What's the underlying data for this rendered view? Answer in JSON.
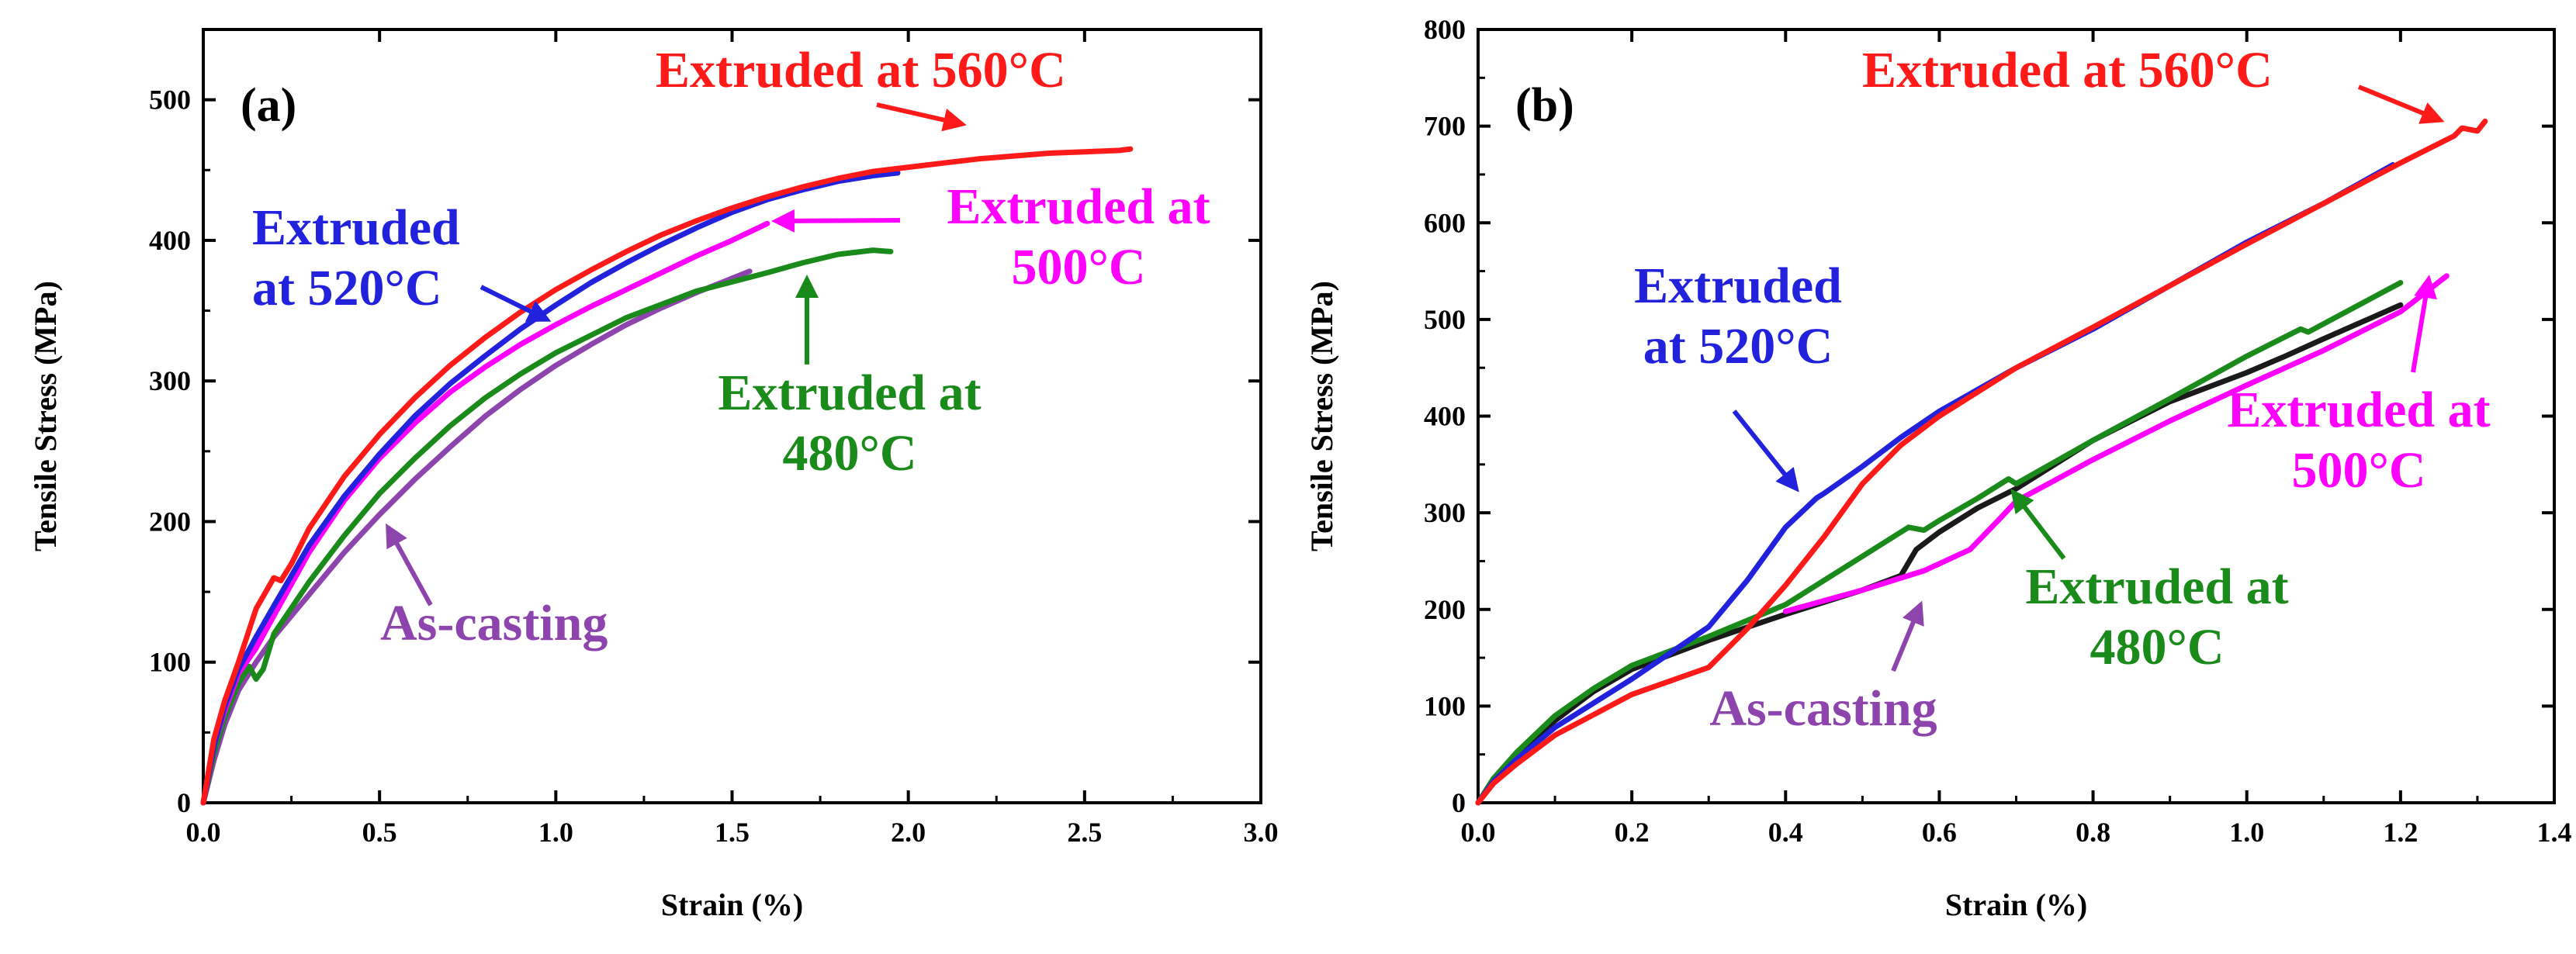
{
  "chart_data": [
    {
      "panel_label": "(a)",
      "type": "line",
      "xlabel": "Strain (%)",
      "ylabel": "Tensile Stress (MPa)",
      "xlim": [
        0,
        3.0
      ],
      "ylim": [
        0,
        550
      ],
      "xticks": [
        "0.0",
        "0.5",
        "1.0",
        "1.5",
        "2.0",
        "2.5",
        "3.0"
      ],
      "xtick_values": [
        0,
        0.5,
        1.0,
        1.5,
        2.0,
        2.5,
        3.0
      ],
      "yticks": [
        "0",
        "100",
        "200",
        "300",
        "400",
        "500"
      ],
      "ytick_values": [
        0,
        100,
        200,
        300,
        400,
        500
      ],
      "series": [
        {
          "name": "As-casting",
          "color": "#8e44ad",
          "x": [
            0,
            0.03,
            0.06,
            0.1,
            0.15,
            0.2,
            0.3,
            0.4,
            0.5,
            0.6,
            0.7,
            0.8,
            0.9,
            1.0,
            1.1,
            1.2,
            1.3,
            1.4,
            1.5,
            1.55
          ],
          "y": [
            0,
            30,
            55,
            80,
            100,
            118,
            148,
            178,
            205,
            230,
            253,
            275,
            294,
            311,
            326,
            340,
            352,
            363,
            373,
            378
          ]
        },
        {
          "name": "Extruded at 480°C",
          "color": "#1a8a1a",
          "x": [
            0,
            0.03,
            0.06,
            0.1,
            0.13,
            0.15,
            0.17,
            0.2,
            0.3,
            0.4,
            0.5,
            0.6,
            0.7,
            0.8,
            0.9,
            1.0,
            1.2,
            1.4,
            1.6,
            1.7,
            1.8,
            1.9,
            1.95
          ],
          "y": [
            0,
            35,
            60,
            85,
            97,
            88,
            95,
            120,
            157,
            190,
            220,
            245,
            268,
            288,
            305,
            320,
            345,
            364,
            377,
            384,
            390,
            393,
            392
          ]
        },
        {
          "name": "Extruded at 500°C",
          "color": "#ff00ff",
          "x": [
            0,
            0.03,
            0.06,
            0.1,
            0.15,
            0.2,
            0.3,
            0.4,
            0.5,
            0.6,
            0.7,
            0.8,
            0.9,
            1.0,
            1.1,
            1.2,
            1.3,
            1.4,
            1.5,
            1.6
          ],
          "y": [
            0,
            40,
            65,
            92,
            110,
            133,
            178,
            215,
            245,
            270,
            292,
            310,
            326,
            340,
            353,
            365,
            377,
            389,
            400,
            412
          ]
        },
        {
          "name": "Extruded at 520°C",
          "color": "#2222dd",
          "x": [
            0,
            0.03,
            0.06,
            0.1,
            0.15,
            0.2,
            0.3,
            0.4,
            0.5,
            0.6,
            0.7,
            0.8,
            0.9,
            1.0,
            1.1,
            1.2,
            1.3,
            1.4,
            1.5,
            1.6,
            1.7,
            1.8,
            1.9,
            1.97
          ],
          "y": [
            0,
            40,
            68,
            95,
            118,
            140,
            183,
            218,
            248,
            275,
            298,
            318,
            337,
            354,
            370,
            384,
            397,
            409,
            420,
            429,
            436,
            442,
            446,
            448
          ]
        },
        {
          "name": "Extruded at 560°C",
          "color": "#ff1a1a",
          "x": [
            0,
            0.03,
            0.06,
            0.1,
            0.15,
            0.2,
            0.22,
            0.25,
            0.3,
            0.4,
            0.5,
            0.6,
            0.7,
            0.8,
            0.9,
            1.0,
            1.1,
            1.2,
            1.3,
            1.4,
            1.5,
            1.6,
            1.7,
            1.8,
            1.9,
            2.0,
            2.1,
            2.2,
            2.3,
            2.4,
            2.5,
            2.6,
            2.63
          ],
          "y": [
            0,
            45,
            72,
            100,
            138,
            160,
            158,
            170,
            195,
            232,
            262,
            288,
            311,
            331,
            349,
            365,
            379,
            392,
            404,
            414,
            423,
            431,
            438,
            444,
            449,
            452,
            455,
            458,
            460,
            462,
            463,
            464,
            465
          ]
        }
      ],
      "annotations": [
        {
          "lines": [
            "Extruded at 560°C"
          ],
          "color": "#ff1a1a"
        },
        {
          "lines": [
            "Extruded",
            "at 520°C"
          ],
          "color": "#2222dd"
        },
        {
          "lines": [
            "Extruded at",
            "500°C"
          ],
          "color": "#ff00ff"
        },
        {
          "lines": [
            "Extruded at",
            "480°C"
          ],
          "color": "#1a8a1a"
        },
        {
          "lines": [
            "As-casting"
          ],
          "color": "#8e44ad"
        }
      ]
    },
    {
      "panel_label": "(b)",
      "type": "line",
      "xlabel": "Strain (%)",
      "ylabel": "Tensile Stress (MPa)",
      "xlim": [
        0,
        1.4
      ],
      "ylim": [
        0,
        800
      ],
      "xticks": [
        "0.0",
        "0.2",
        "0.4",
        "0.6",
        "0.8",
        "1.0",
        "1.2",
        "1.4"
      ],
      "xtick_values": [
        0,
        0.2,
        0.4,
        0.6,
        0.8,
        1.0,
        1.2,
        1.4
      ],
      "yticks": [
        "0",
        "100",
        "200",
        "300",
        "400",
        "500",
        "600",
        "700",
        "800"
      ],
      "ytick_values": [
        0,
        100,
        200,
        300,
        400,
        500,
        600,
        700,
        800
      ],
      "series": [
        {
          "name": "As-casting",
          "color": "#1a1a1a",
          "x": [
            0,
            0.02,
            0.05,
            0.1,
            0.15,
            0.2,
            0.3,
            0.4,
            0.5,
            0.55,
            0.57,
            0.6,
            0.65,
            0.7,
            0.8,
            0.9,
            1.0,
            1.05,
            1.1,
            1.2
          ],
          "y": [
            0,
            25,
            50,
            85,
            115,
            138,
            168,
            195,
            220,
            235,
            262,
            280,
            305,
            325,
            375,
            415,
            445,
            462,
            480,
            515
          ]
        },
        {
          "name": "Extruded at 500°C",
          "color": "#ff00ff",
          "x": [
            0.4,
            0.5,
            0.58,
            0.64,
            0.68,
            0.7,
            0.8,
            0.9,
            1.0,
            1.1,
            1.2,
            1.26
          ],
          "y": [
            198,
            220,
            240,
            262,
            295,
            312,
            355,
            395,
            432,
            468,
            508,
            545
          ]
        },
        {
          "name": "Extruded at 480°C",
          "color": "#1a8a1a",
          "x": [
            0,
            0.02,
            0.05,
            0.1,
            0.15,
            0.2,
            0.3,
            0.4,
            0.5,
            0.56,
            0.58,
            0.6,
            0.65,
            0.69,
            0.7,
            0.8,
            0.9,
            1.0,
            1.07,
            1.08,
            1.2
          ],
          "y": [
            0,
            25,
            52,
            90,
            118,
            142,
            172,
            205,
            255,
            285,
            282,
            292,
            315,
            335,
            330,
            375,
            418,
            462,
            490,
            487,
            538
          ]
        },
        {
          "name": "Extruded at 520°C",
          "color": "#2222dd",
          "x": [
            0,
            0.02,
            0.05,
            0.1,
            0.2,
            0.3,
            0.35,
            0.4,
            0.44,
            0.45,
            0.5,
            0.55,
            0.6,
            0.7,
            0.8,
            0.9,
            1.0,
            1.1,
            1.19
          ],
          "y": [
            0,
            22,
            45,
            78,
            128,
            182,
            230,
            285,
            315,
            320,
            348,
            378,
            405,
            450,
            490,
            535,
            580,
            620,
            660
          ]
        },
        {
          "name": "Extruded at 560°C",
          "color": "#ff1a1a",
          "x": [
            0,
            0.02,
            0.05,
            0.1,
            0.2,
            0.3,
            0.35,
            0.4,
            0.45,
            0.5,
            0.55,
            0.6,
            0.7,
            0.8,
            0.9,
            1.0,
            1.1,
            1.2,
            1.27,
            1.28,
            1.3,
            1.31
          ],
          "y": [
            0,
            20,
            40,
            70,
            112,
            140,
            180,
            225,
            275,
            330,
            370,
            400,
            450,
            492,
            535,
            578,
            620,
            662,
            690,
            698,
            695,
            705
          ]
        }
      ],
      "annotations": [
        {
          "lines": [
            "Extruded at 560°C"
          ],
          "color": "#ff1a1a"
        },
        {
          "lines": [
            "Extruded",
            "at 520°C"
          ],
          "color": "#2222dd"
        },
        {
          "lines": [
            "Extruded at",
            "500°C"
          ],
          "color": "#ff00ff"
        },
        {
          "lines": [
            "Extruded at",
            "480°C"
          ],
          "color": "#1a8a1a"
        },
        {
          "lines": [
            "As-casting"
          ],
          "color": "#8e44ad"
        }
      ]
    }
  ]
}
